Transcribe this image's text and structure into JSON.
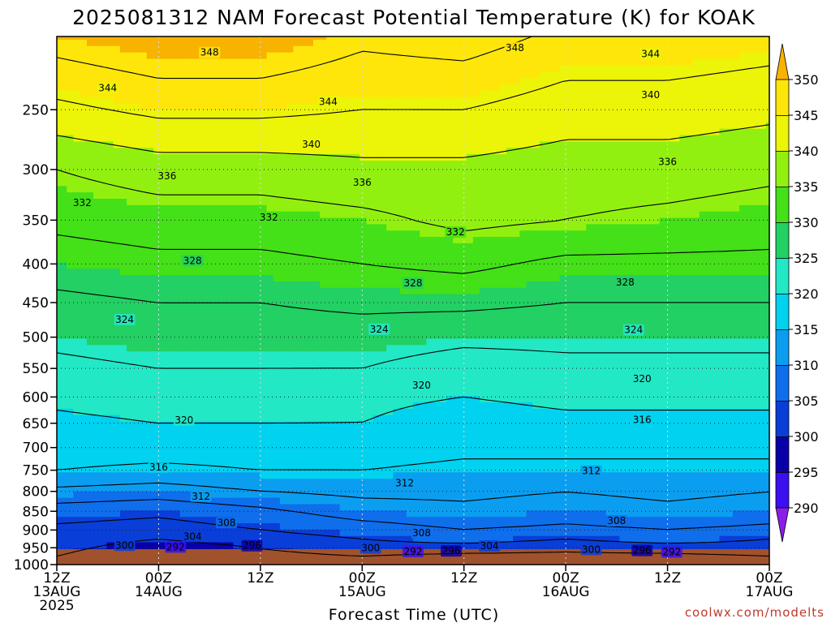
{
  "title": "2025081312 NAM Forecast Potential Temperature (K) for KOAK",
  "credit": "coolwx.com/modelts",
  "chart_data": {
    "type": "heatmap",
    "title": "2025081312 NAM Forecast Potential Temperature (K) for KOAK",
    "xlabel": "Forecast Time (UTC)",
    "ylabel": "",
    "y_scale": "log",
    "y_reversed": true,
    "ylim": [
      1000,
      200
    ],
    "xlim": [
      0,
      84
    ],
    "y_ticks": [
      250,
      300,
      350,
      400,
      450,
      500,
      550,
      600,
      650,
      700,
      750,
      800,
      850,
      900,
      950,
      1000
    ],
    "x_ticks": [
      {
        "hour": 0,
        "lines": [
          "12Z",
          "13AUG",
          "2025"
        ]
      },
      {
        "hour": 12,
        "lines": [
          "00Z",
          "14AUG"
        ]
      },
      {
        "hour": 24,
        "lines": [
          "12Z"
        ]
      },
      {
        "hour": 36,
        "lines": [
          "00Z",
          "15AUG"
        ]
      },
      {
        "hour": 48,
        "lines": [
          "12Z"
        ]
      },
      {
        "hour": 60,
        "lines": [
          "00Z",
          "16AUG"
        ]
      },
      {
        "hour": 72,
        "lines": [
          "12Z"
        ]
      },
      {
        "hour": 84,
        "lines": [
          "00Z",
          "17AUG"
        ]
      }
    ],
    "grid": true,
    "colorbar": {
      "levels": [
        290,
        295,
        300,
        305,
        310,
        315,
        320,
        325,
        330,
        335,
        340,
        345,
        350
      ],
      "labels": [
        "290",
        "295",
        "300",
        "305",
        "310",
        "315",
        "320",
        "325",
        "330",
        "335",
        "340",
        "345",
        "350"
      ],
      "colors": [
        "#8a1ee6",
        "#3a0ff0",
        "#0a00a8",
        "#0a3ed8",
        "#0f6eec",
        "#0b9ef0",
        "#00d2f0",
        "#22e8c6",
        "#22d064",
        "#44e018",
        "#92f010",
        "#ecf408",
        "#fee60a",
        "#f8b200"
      ],
      "position": "right",
      "extend": "both"
    },
    "contour_interval": 4,
    "profile_levels": [
      1000,
      950,
      925,
      900,
      850,
      800,
      750,
      700,
      650,
      600,
      550,
      500,
      450,
      400,
      350,
      300,
      250,
      200
    ],
    "profile_hours": [
      0,
      12,
      24,
      36,
      48,
      60,
      72,
      84
    ],
    "theta": [
      [
        299,
        301,
        302,
        303,
        306,
        311,
        316,
        318,
        319,
        321,
        323,
        325,
        327,
        330,
        333,
        336,
        343,
        350
      ],
      [
        296,
        298,
        300,
        302,
        305,
        310,
        315,
        318,
        320,
        322,
        324,
        326,
        328,
        331,
        334,
        338,
        345,
        352
      ],
      [
        298,
        300,
        302,
        304,
        307,
        312,
        316,
        318,
        320,
        322,
        324,
        326,
        328,
        331,
        334,
        338,
        345,
        352
      ],
      [
        298,
        302,
        304,
        306,
        310,
        313,
        316,
        318,
        320,
        321,
        324,
        326,
        329,
        332,
        335,
        339,
        344,
        349
      ],
      [
        296,
        302,
        306,
        308,
        311,
        313,
        315,
        317,
        318,
        320,
        322,
        325,
        329,
        333,
        337,
        339,
        344,
        350
      ],
      [
        297,
        301,
        304,
        307,
        310,
        312,
        315,
        317,
        319,
        321,
        323,
        325,
        328,
        331,
        336,
        338,
        342,
        347
      ],
      [
        296,
        302,
        306,
        308,
        311,
        313,
        315,
        317,
        319,
        321,
        323,
        325,
        328,
        331,
        335,
        338,
        342,
        347
      ],
      [
        298,
        302,
        304,
        307,
        310,
        312,
        315,
        317,
        319,
        321,
        323,
        325,
        328,
        331,
        334,
        337,
        341,
        346
      ]
    ],
    "contour_labels": [
      {
        "hour": 18,
        "p": 210,
        "text": "348"
      },
      {
        "hour": 54,
        "p": 207,
        "text": "348"
      },
      {
        "hour": 70,
        "p": 211,
        "text": "344"
      },
      {
        "hour": 6,
        "p": 234,
        "text": "344"
      },
      {
        "hour": 32,
        "p": 244,
        "text": "344"
      },
      {
        "hour": 70,
        "p": 239,
        "text": "340"
      },
      {
        "hour": 30,
        "p": 278,
        "text": "340"
      },
      {
        "hour": 72,
        "p": 293,
        "text": "336"
      },
      {
        "hour": 13,
        "p": 306,
        "text": "336"
      },
      {
        "hour": 36,
        "p": 312,
        "text": "336"
      },
      {
        "hour": 3,
        "p": 332,
        "text": "332"
      },
      {
        "hour": 25,
        "p": 347,
        "text": "332"
      },
      {
        "hour": 47,
        "p": 363,
        "text": "332"
      },
      {
        "hour": 16,
        "p": 396,
        "text": "328"
      },
      {
        "hour": 42,
        "p": 424,
        "text": "328"
      },
      {
        "hour": 67,
        "p": 423,
        "text": "328"
      },
      {
        "hour": 8,
        "p": 474,
        "text": "324"
      },
      {
        "hour": 38,
        "p": 488,
        "text": "324"
      },
      {
        "hour": 68,
        "p": 489,
        "text": "324"
      },
      {
        "hour": 43,
        "p": 579,
        "text": "320"
      },
      {
        "hour": 69,
        "p": 568,
        "text": "320"
      },
      {
        "hour": 15,
        "p": 644,
        "text": "320"
      },
      {
        "hour": 69,
        "p": 643,
        "text": "316"
      },
      {
        "hour": 12,
        "p": 743,
        "text": "316"
      },
      {
        "hour": 41,
        "p": 780,
        "text": "312"
      },
      {
        "hour": 63,
        "p": 752,
        "text": "312"
      },
      {
        "hour": 17,
        "p": 812,
        "text": "312"
      },
      {
        "hour": 20,
        "p": 880,
        "text": "308"
      },
      {
        "hour": 43,
        "p": 908,
        "text": "308"
      },
      {
        "hour": 66,
        "p": 875,
        "text": "308"
      },
      {
        "hour": 16,
        "p": 918,
        "text": "304"
      },
      {
        "hour": 51,
        "p": 945,
        "text": "304"
      },
      {
        "hour": 8,
        "p": 943,
        "text": "300"
      },
      {
        "hour": 37,
        "p": 951,
        "text": "300"
      },
      {
        "hour": 63,
        "p": 955,
        "text": "300"
      },
      {
        "hour": 14,
        "p": 948,
        "text": "292"
      },
      {
        "hour": 23,
        "p": 944,
        "text": "296"
      },
      {
        "hour": 42,
        "p": 961,
        "text": "292"
      },
      {
        "hour": 46.5,
        "p": 959,
        "text": "296"
      },
      {
        "hour": 69,
        "p": 958,
        "text": "296"
      },
      {
        "hour": 72.5,
        "p": 962,
        "text": "292"
      }
    ]
  }
}
